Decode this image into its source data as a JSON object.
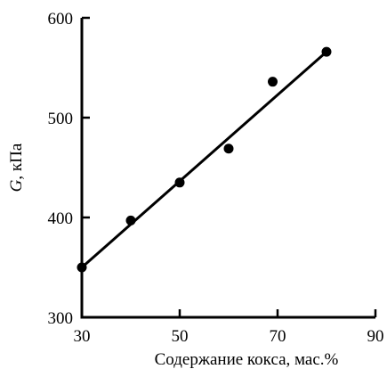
{
  "chart_data": {
    "type": "scatter",
    "title": "",
    "xlabel": "Содержание кокса, мас.%",
    "ylabel_italic": "G",
    "ylabel_rest": ", кПа",
    "xlim": [
      30,
      90
    ],
    "ylim": [
      300,
      600
    ],
    "x_ticks": [
      30,
      50,
      70,
      90
    ],
    "y_ticks": [
      300,
      400,
      500,
      600
    ],
    "x_tick_labels": [
      "30",
      "50",
      "70",
      "90"
    ],
    "y_tick_labels": [
      "300",
      "400",
      "500",
      "600"
    ],
    "grid": false,
    "series": [
      {
        "x": [
          30,
          40,
          50,
          60,
          69,
          80
        ],
        "y": [
          350,
          397,
          435,
          469,
          536,
          566
        ]
      }
    ],
    "trend_line": {
      "x": [
        30,
        80
      ],
      "y": [
        350,
        566
      ]
    },
    "colors": {
      "marker": "#000000",
      "line": "#000000",
      "axis": "#000000"
    }
  }
}
